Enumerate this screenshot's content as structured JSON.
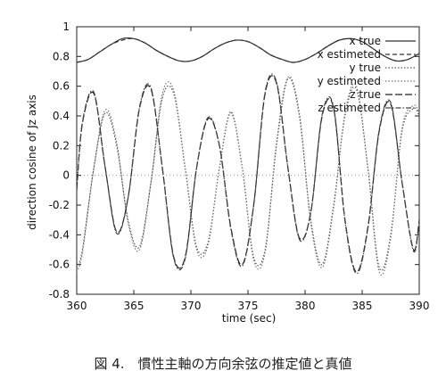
{
  "caption": "図 4.　慣性主軸の方向余弦の推定値と真値",
  "chart_data": {
    "type": "line",
    "xlabel": "time (sec)",
    "ylabel": "direction cosine of Jz axis",
    "xlim": [
      360,
      390
    ],
    "ylim": [
      -0.8,
      1.0
    ],
    "xticks": [
      "360",
      "365",
      "370",
      "375",
      "380",
      "385",
      "390"
    ],
    "yticks": [
      "1",
      "0.8",
      "0.6",
      "0.4",
      "0.2",
      "0",
      "-0.2",
      "-0.4",
      "-0.6",
      "-0.8"
    ],
    "grid": false,
    "legend_position": "top-right",
    "series": [
      {
        "name": "x true",
        "style": "solid",
        "color": "#333333",
        "x": [
          360,
          361,
          362,
          363,
          364,
          365,
          366,
          367,
          368,
          369,
          370,
          371,
          372,
          373,
          374,
          375,
          376,
          377,
          378,
          379,
          380,
          381,
          382,
          383,
          384,
          385,
          386,
          387,
          388,
          389,
          390
        ],
        "y": [
          0.76,
          0.78,
          0.83,
          0.88,
          0.92,
          0.92,
          0.89,
          0.84,
          0.8,
          0.77,
          0.77,
          0.8,
          0.85,
          0.89,
          0.91,
          0.9,
          0.86,
          0.81,
          0.78,
          0.76,
          0.78,
          0.82,
          0.87,
          0.91,
          0.92,
          0.9,
          0.85,
          0.8,
          0.77,
          0.78,
          0.82
        ]
      },
      {
        "name": "x estimeted",
        "style": "dashed",
        "color": "#333333",
        "x": [
          360,
          361,
          362,
          363,
          364,
          365,
          366,
          367,
          368,
          369,
          370,
          371,
          372,
          373,
          374,
          375,
          376,
          377,
          378,
          379,
          380,
          381,
          382,
          383,
          384,
          385,
          386,
          387,
          388,
          389,
          390
        ],
        "y": [
          0.76,
          0.78,
          0.83,
          0.88,
          0.91,
          0.92,
          0.89,
          0.84,
          0.8,
          0.77,
          0.77,
          0.8,
          0.85,
          0.89,
          0.91,
          0.9,
          0.86,
          0.81,
          0.78,
          0.76,
          0.78,
          0.82,
          0.87,
          0.91,
          0.92,
          0.9,
          0.85,
          0.8,
          0.77,
          0.78,
          0.82
        ]
      },
      {
        "name": "y true",
        "style": "dotted",
        "color": "#555555",
        "x": [
          360,
          360.5,
          361.5,
          362.5,
          363.5,
          364.5,
          365.5,
          366.5,
          367.5,
          368.5,
          369.5,
          370.5,
          371.5,
          372.5,
          373.5,
          374.5,
          375.5,
          376.5,
          377.5,
          378.5,
          379.5,
          380.5,
          381.5,
          382.5,
          383.5,
          384.5,
          385.5,
          386.5,
          387.5,
          388.5,
          389.5,
          390
        ],
        "y": [
          -0.62,
          -0.5,
          0.05,
          0.42,
          0.2,
          -0.3,
          -0.48,
          -0.05,
          0.52,
          0.55,
          0.05,
          -0.48,
          -0.45,
          0.05,
          0.42,
          0.05,
          -0.55,
          -0.5,
          0.2,
          0.65,
          0.4,
          -0.3,
          -0.6,
          -0.2,
          0.4,
          0.58,
          0.05,
          -0.62,
          -0.4,
          0.3,
          0.45,
          0.4
        ]
      },
      {
        "name": "y estimeted",
        "style": "dotted",
        "color": "#777777",
        "x": [
          360,
          360.5,
          361.5,
          362.5,
          363.5,
          364.5,
          365.5,
          366.5,
          367.5,
          368.5,
          369.5,
          370.5,
          371.5,
          372.5,
          373.5,
          374.5,
          375.5,
          376.5,
          377.5,
          378.5,
          379.5,
          380.5,
          381.5,
          382.5,
          383.5,
          384.5,
          385.5,
          386.5,
          387.5,
          388.5,
          389.5,
          390
        ],
        "y": [
          -0.65,
          -0.52,
          0.05,
          0.44,
          0.22,
          -0.32,
          -0.5,
          -0.05,
          0.55,
          0.57,
          0.05,
          -0.5,
          -0.47,
          0.05,
          0.43,
          0.05,
          -0.57,
          -0.52,
          0.22,
          0.66,
          0.42,
          -0.32,
          -0.62,
          -0.22,
          0.42,
          0.6,
          0.05,
          -0.65,
          -0.42,
          0.32,
          0.47,
          0.42
        ]
      },
      {
        "name": "z true",
        "style": "longdash",
        "color": "#222222",
        "x": [
          360,
          360.5,
          361.5,
          362.5,
          363.5,
          364.5,
          365.5,
          366.5,
          367.5,
          368.5,
          369.5,
          370.5,
          371.5,
          372.5,
          373.5,
          374.5,
          375.5,
          376.5,
          377.5,
          378.5,
          379.5,
          380.5,
          381.5,
          382.5,
          383.5,
          384.5,
          385.5,
          386.5,
          387.5,
          388.5,
          389.5,
          390
        ],
        "y": [
          -0.1,
          0.35,
          0.55,
          0.05,
          -0.38,
          -0.15,
          0.45,
          0.58,
          0.05,
          -0.55,
          -0.55,
          0.05,
          0.38,
          0.2,
          -0.35,
          -0.6,
          -0.2,
          0.55,
          0.62,
          0.05,
          -0.42,
          -0.25,
          0.4,
          0.45,
          -0.3,
          -0.65,
          -0.35,
          0.3,
          0.48,
          -0.05,
          -0.5,
          -0.3
        ]
      },
      {
        "name": "z estimeted",
        "style": "dashdot",
        "color": "#444444",
        "x": [
          360,
          360.5,
          361.5,
          362.5,
          363.5,
          364.5,
          365.5,
          366.5,
          367.5,
          368.5,
          369.5,
          370.5,
          371.5,
          372.5,
          373.5,
          374.5,
          375.5,
          376.5,
          377.5,
          378.5,
          379.5,
          380.5,
          381.5,
          382.5,
          383.5,
          384.5,
          385.5,
          386.5,
          387.5,
          388.5,
          389.5,
          390
        ],
        "y": [
          -0.1,
          0.36,
          0.56,
          0.05,
          -0.39,
          -0.15,
          0.46,
          0.59,
          0.05,
          -0.56,
          -0.56,
          0.05,
          0.39,
          0.2,
          -0.36,
          -0.61,
          -0.2,
          0.56,
          0.63,
          0.05,
          -0.43,
          -0.25,
          0.41,
          0.46,
          -0.31,
          -0.66,
          -0.36,
          0.31,
          0.49,
          -0.05,
          -0.51,
          -0.31
        ]
      }
    ]
  }
}
